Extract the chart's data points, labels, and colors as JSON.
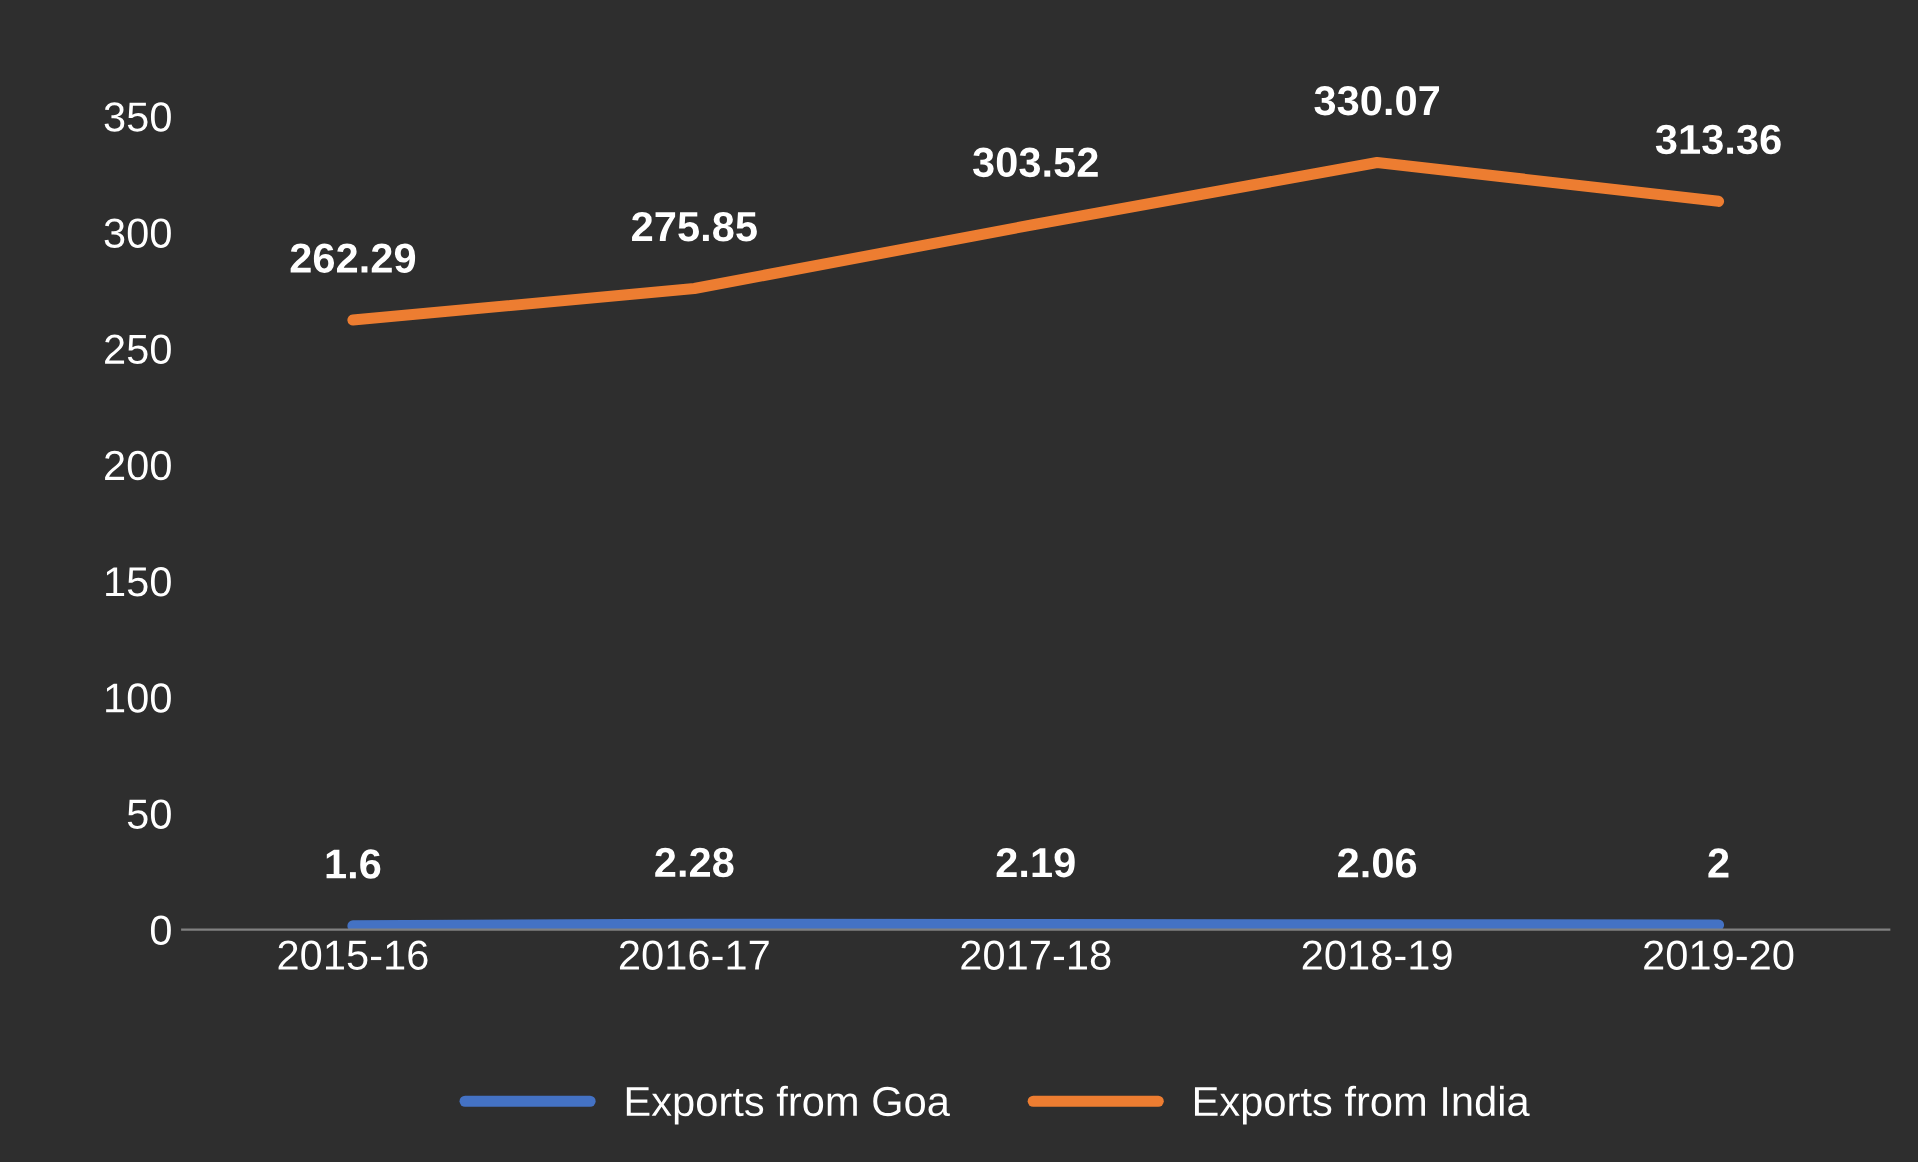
{
  "chart_data": {
    "type": "line",
    "categories": [
      "2015-16",
      "2016-17",
      "2017-18",
      "2018-19",
      "2019-20"
    ],
    "series": [
      {
        "name": "Exports from Goa",
        "color": "#4472c4",
        "values": [
          1.6,
          2.28,
          2.19,
          2.06,
          2
        ]
      },
      {
        "name": "Exports from India",
        "color": "#ed7d31",
        "values": [
          262.29,
          275.85,
          303.52,
          330.07,
          313.36
        ]
      }
    ],
    "ylim": [
      0,
      350
    ],
    "yticks": [
      0,
      50,
      100,
      150,
      200,
      250,
      300,
      350
    ],
    "data_labels": true,
    "grid": false,
    "legend": "bottom",
    "marker": "none",
    "line_style": "solid"
  }
}
